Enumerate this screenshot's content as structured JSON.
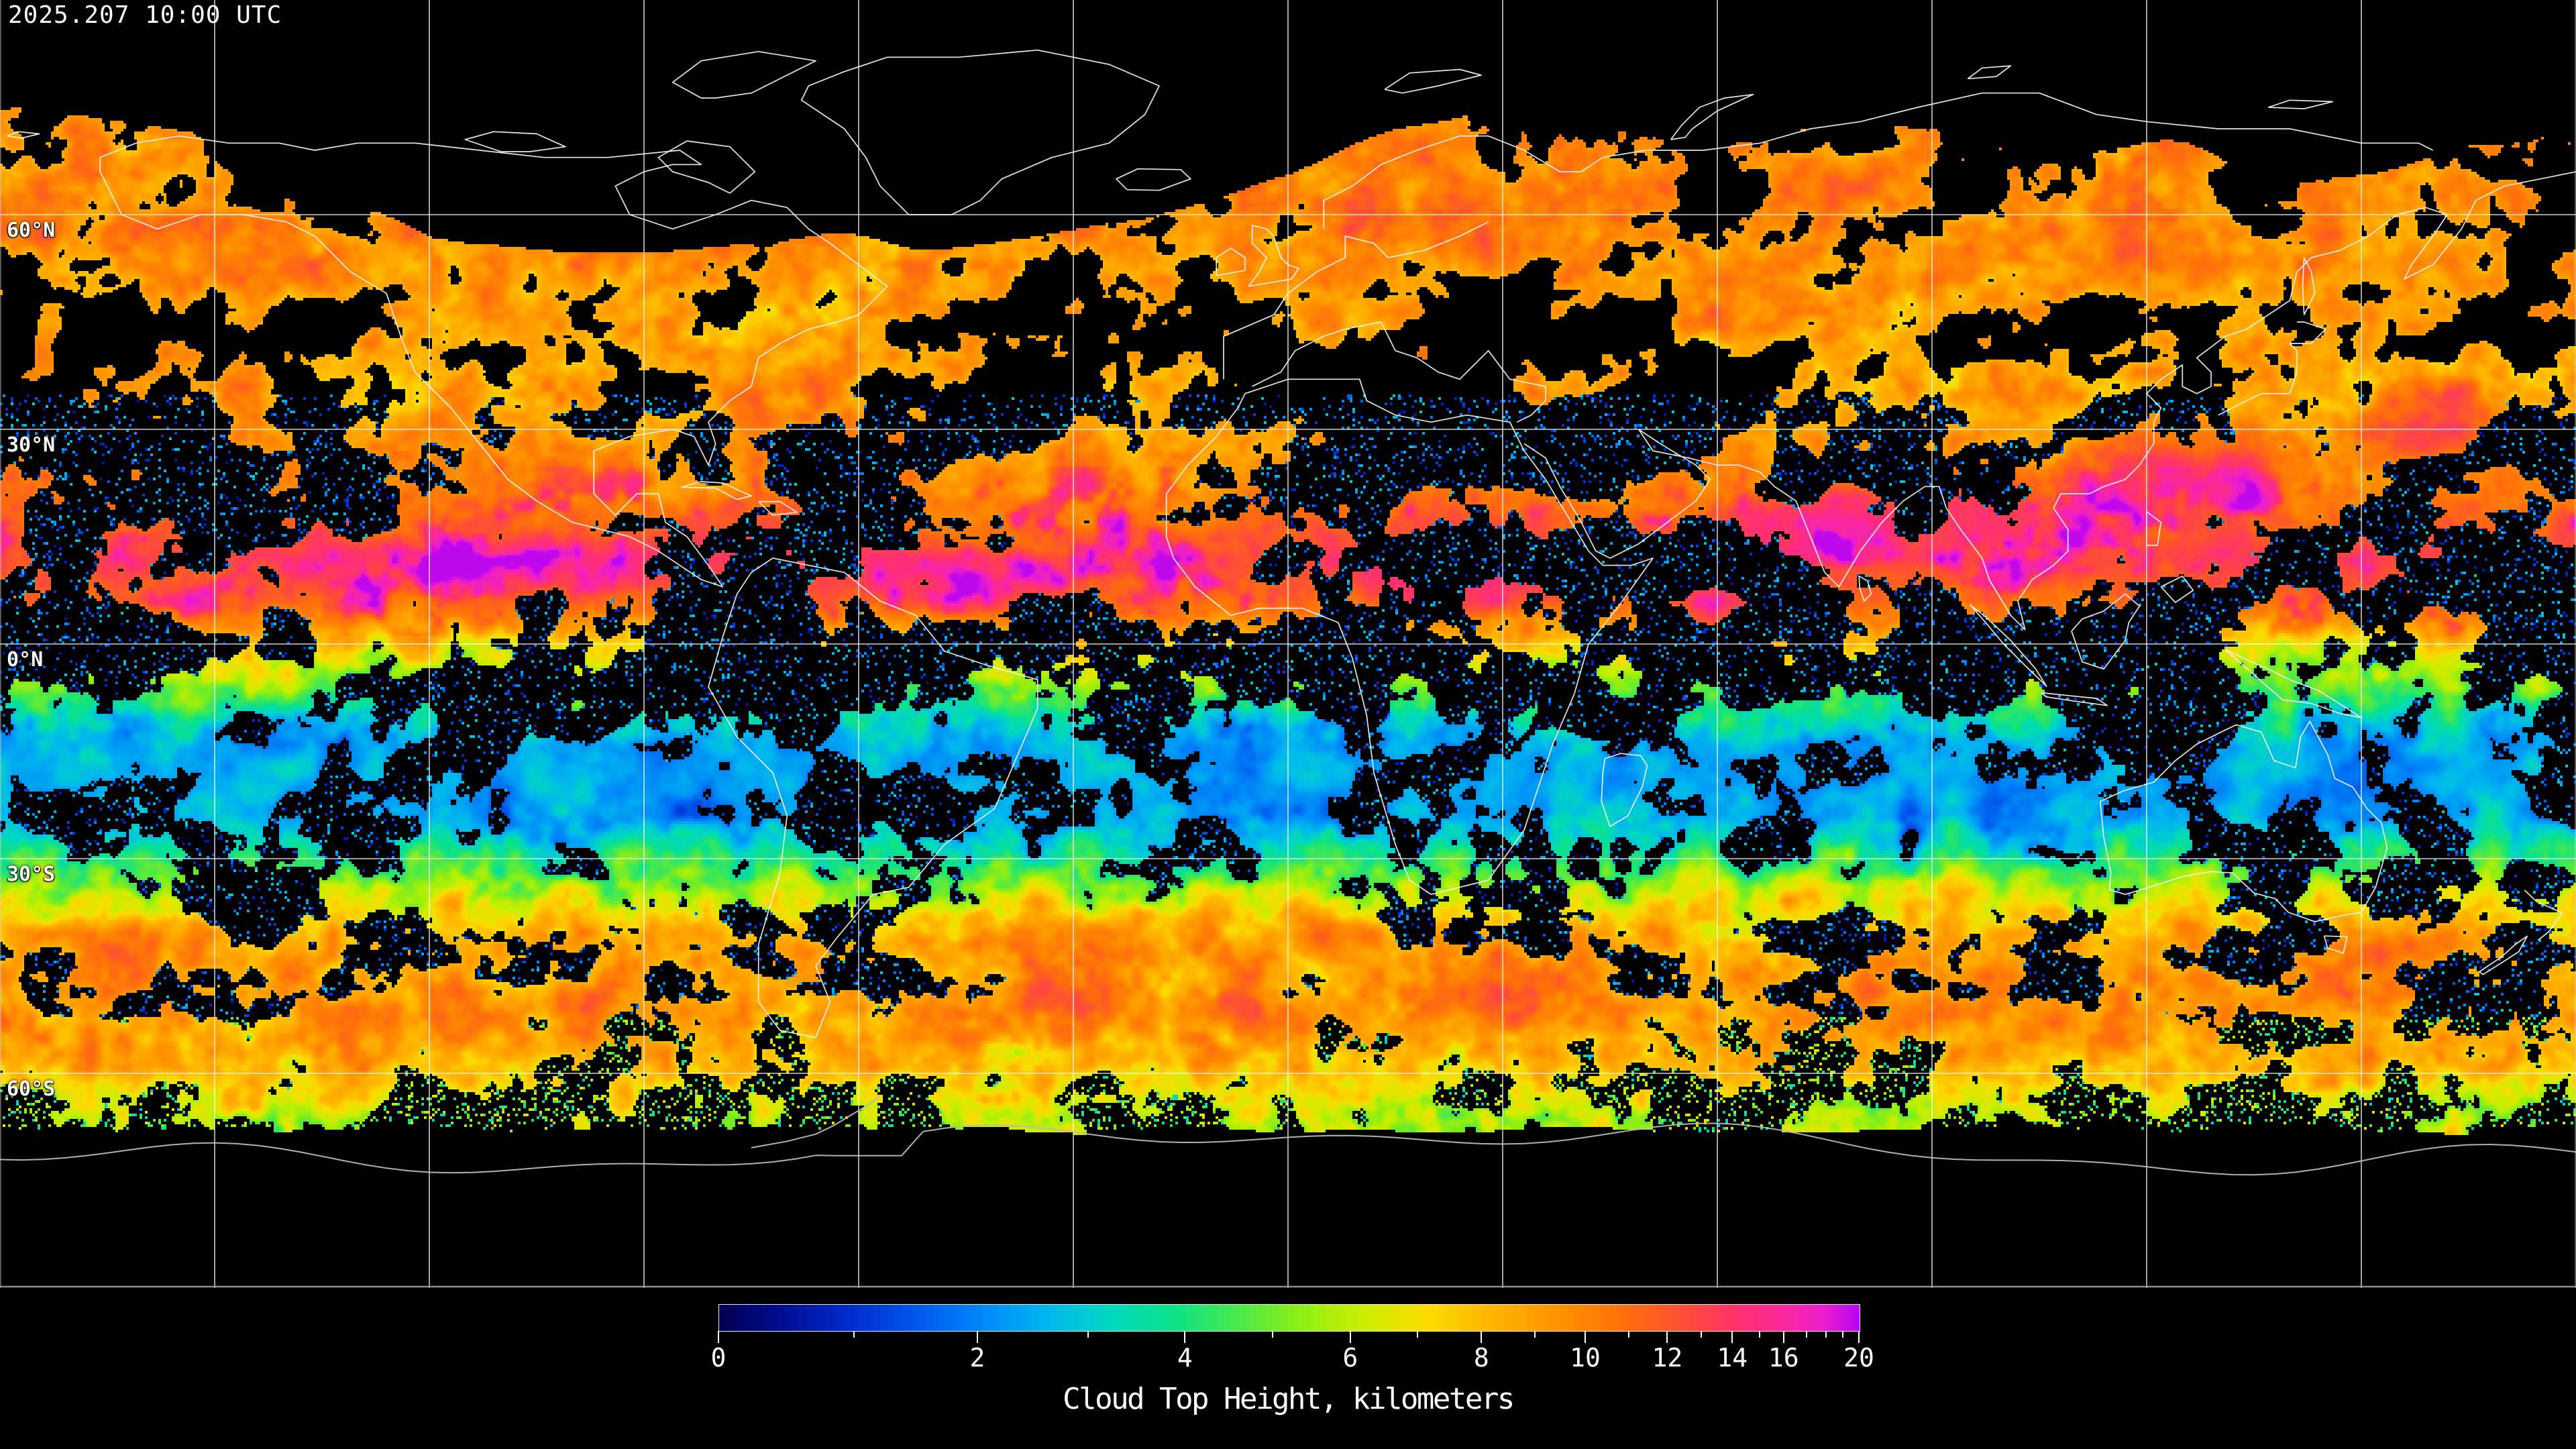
{
  "header": {
    "timestamp": "2025.207 10:00 UTC"
  },
  "map": {
    "latitude_labels": [
      {
        "label": "60°N",
        "lat": 60
      },
      {
        "label": "30°N",
        "lat": 30
      },
      {
        "label": "0°N",
        "lat": 0
      },
      {
        "label": "30°S",
        "lat": -30
      },
      {
        "label": "60°S",
        "lat": -60
      }
    ],
    "grid": {
      "lon_min": -180,
      "lon_max": 180,
      "lat_min": -90,
      "lat_max": 90,
      "lon_step": 30,
      "lat_step": 30
    },
    "frame_color": "#9a9a9a",
    "gridline_color": "#ffffff",
    "coastline_color": "#f2f2f2",
    "antarctic_coast_color": "#b9b9b9",
    "background_color": "#000000"
  },
  "legend": {
    "title": "Cloud Top Height, kilometers",
    "units": "kilometers",
    "min_km": 0,
    "max_km": 20,
    "major_ticks": [
      {
        "value": "0",
        "km": 0,
        "frac": 0.0
      },
      {
        "value": "2",
        "km": 2,
        "frac": 0.227
      },
      {
        "value": "4",
        "km": 4,
        "frac": 0.409
      },
      {
        "value": "6",
        "km": 6,
        "frac": 0.554
      },
      {
        "value": "8",
        "km": 8,
        "frac": 0.669
      },
      {
        "value": "10",
        "km": 10,
        "frac": 0.76
      },
      {
        "value": "12",
        "km": 12,
        "frac": 0.832
      },
      {
        "value": "14",
        "km": 14,
        "frac": 0.889
      },
      {
        "value": "16",
        "km": 16,
        "frac": 0.934
      },
      {
        "value": "20",
        "km": 20,
        "frac": 1.0
      }
    ],
    "minor_ticks": [
      {
        "km": 1,
        "frac": 0.119
      },
      {
        "km": 3,
        "frac": 0.324
      },
      {
        "km": 5,
        "frac": 0.486
      },
      {
        "km": 7,
        "frac": 0.613
      },
      {
        "km": 9,
        "frac": 0.716
      },
      {
        "km": 11,
        "frac": 0.798
      },
      {
        "km": 13,
        "frac": 0.862
      },
      {
        "km": 15,
        "frac": 0.913
      },
      {
        "km": 17,
        "frac": 0.954
      },
      {
        "km": 18,
        "frac": 0.971
      },
      {
        "km": 19,
        "frac": 0.986
      }
    ],
    "gradient_stops": [
      {
        "frac": 0.0,
        "color": "#000050"
      },
      {
        "frac": 0.055,
        "color": "#000d92"
      },
      {
        "frac": 0.115,
        "color": "#002cd0"
      },
      {
        "frac": 0.175,
        "color": "#0058ee"
      },
      {
        "frac": 0.235,
        "color": "#008cf8"
      },
      {
        "frac": 0.29,
        "color": "#00b8ee"
      },
      {
        "frac": 0.345,
        "color": "#00d9bc"
      },
      {
        "frac": 0.4,
        "color": "#0ee287"
      },
      {
        "frac": 0.455,
        "color": "#49e94b"
      },
      {
        "frac": 0.51,
        "color": "#8eef14"
      },
      {
        "frac": 0.565,
        "color": "#ccee00"
      },
      {
        "frac": 0.62,
        "color": "#fbdc00"
      },
      {
        "frac": 0.68,
        "color": "#ffb300"
      },
      {
        "frac": 0.74,
        "color": "#ff9000"
      },
      {
        "frac": 0.8,
        "color": "#ff6c0e"
      },
      {
        "frac": 0.855,
        "color": "#ff4840"
      },
      {
        "frac": 0.9,
        "color": "#ff2f77"
      },
      {
        "frac": 0.94,
        "color": "#f827a7"
      },
      {
        "frac": 0.97,
        "color": "#e91dd1"
      },
      {
        "frac": 1.0,
        "color": "#b503f2"
      }
    ]
  }
}
